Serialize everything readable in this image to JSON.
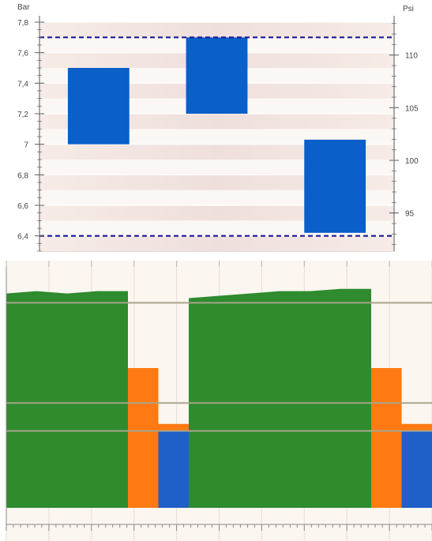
{
  "chart_data": [
    {
      "type": "bar",
      "subtype": "floating-range",
      "y_left_label": "Bar",
      "y_right_label": "Psi",
      "ylim": [
        6.3,
        7.8
      ],
      "y_ticks": [
        "7,8",
        "7,6",
        "7,4",
        "7,2",
        "7",
        "6,8",
        "6,6",
        "6,4"
      ],
      "y_tick_values": [
        7.8,
        7.6,
        7.4,
        7.2,
        7.0,
        6.8,
        6.6,
        6.4
      ],
      "y_right_ticks": [
        "110",
        "105",
        "100",
        "95"
      ],
      "y_right_tick_values": [
        110,
        105,
        100,
        95
      ],
      "bars": [
        {
          "low": 7.0,
          "high": 7.5
        },
        {
          "low": 7.2,
          "high": 7.7
        },
        {
          "low": 6.42,
          "high": 7.03
        }
      ],
      "reference_lines": [
        7.7,
        6.4
      ],
      "bar_color": "#0a5fc8",
      "reference_line_color": "#1a1a9a",
      "grid": true
    },
    {
      "type": "area",
      "subtype": "level-trace",
      "ylim": [
        0,
        1
      ],
      "x_points": [
        0,
        0.5,
        1,
        1.5,
        2,
        2.5,
        3,
        3.5,
        4,
        4.5,
        5,
        5.5,
        6,
        6.5,
        7
      ],
      "series": [
        {
          "color": "#2e8b2e",
          "values": [
            0.92,
            0.93,
            0.92,
            0.93,
            0.0,
            0.0,
            0.9,
            0.91,
            0.92,
            0.93,
            0.93,
            0.94,
            0.0,
            0.0,
            0.92
          ]
        },
        {
          "color": "#ff7a12",
          "values": [
            0,
            0,
            0,
            0,
            0.6,
            0.36,
            0,
            0,
            0,
            0,
            0,
            0,
            0.6,
            0.36,
            0
          ]
        },
        {
          "color": "#1f5fc8",
          "values": [
            0,
            0,
            0,
            0,
            0,
            0.33,
            0,
            0,
            0,
            0,
            0,
            0,
            0,
            0.33,
            0
          ]
        }
      ],
      "reference_lines": [
        0.88,
        0.45,
        0.33
      ],
      "grid": true
    }
  ]
}
